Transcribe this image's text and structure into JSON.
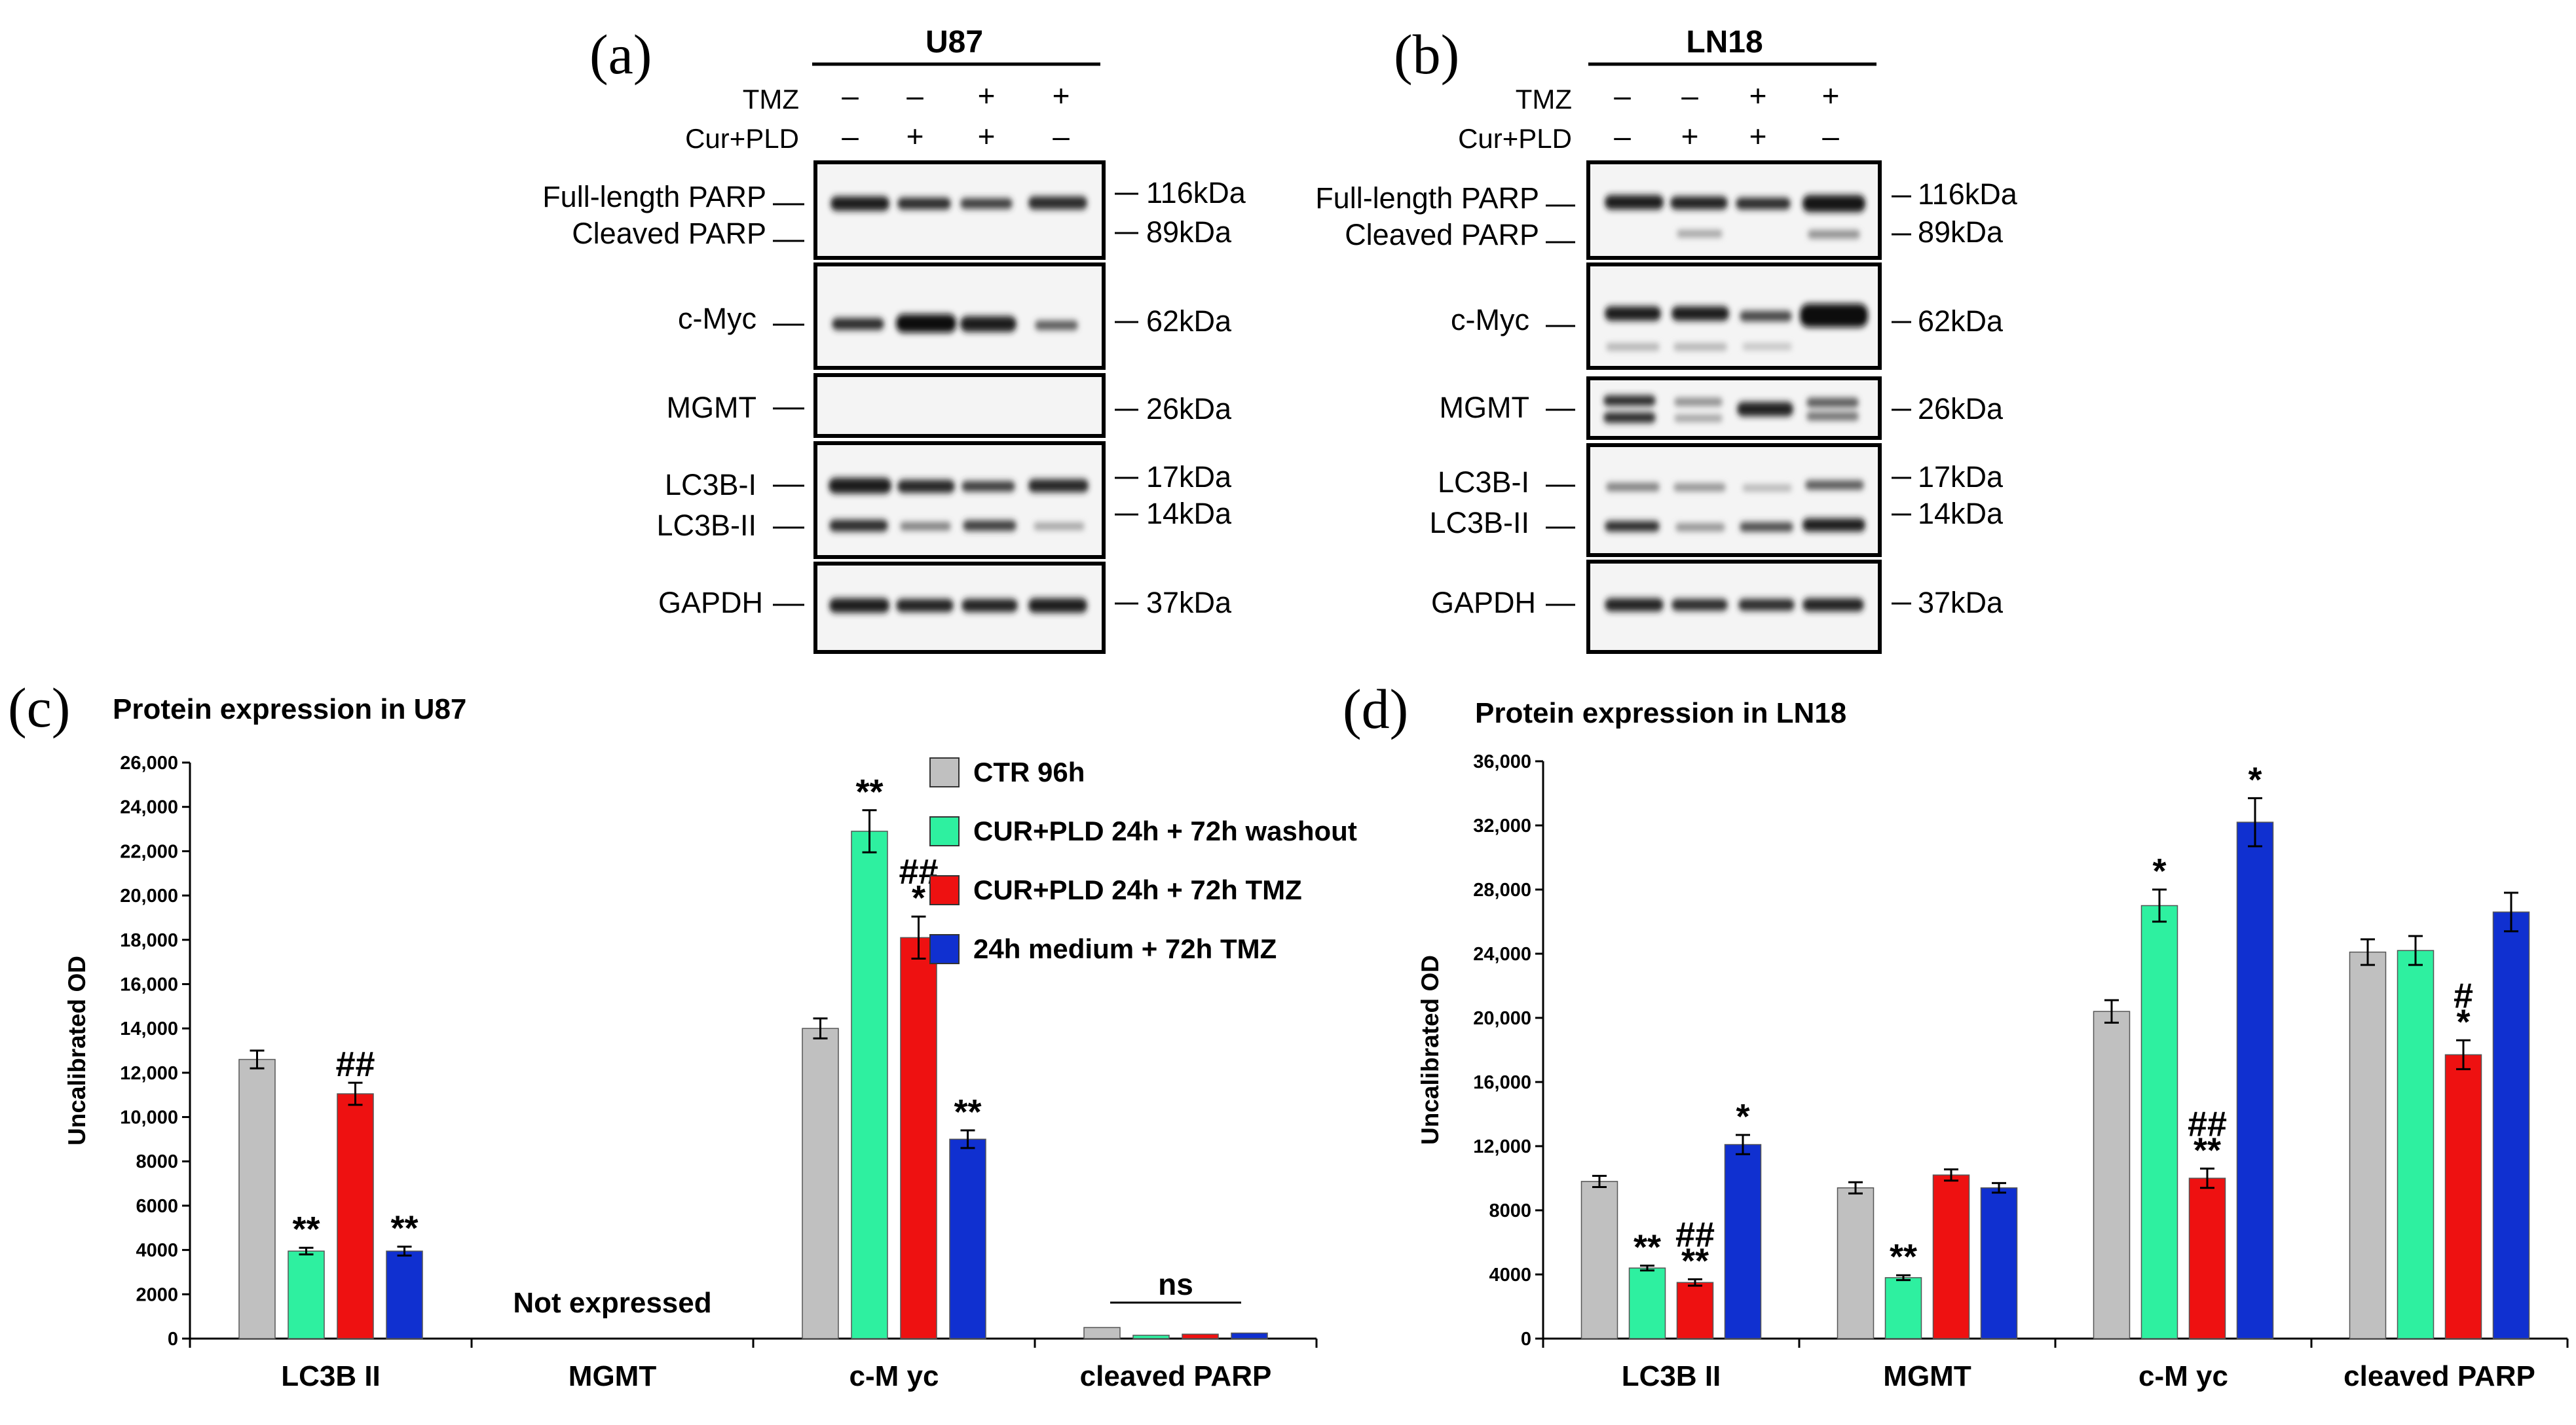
{
  "figure": {
    "panels": {
      "a": "(a)",
      "b": "(b)",
      "c": "(c)",
      "d": "(d)"
    }
  },
  "blots": [
    {
      "id": "a",
      "letter": "(a)",
      "cell_line": "U87",
      "tmz_label": "TMZ",
      "curpld_label": "Cur+PLD",
      "tmz_signs": [
        "–",
        "–",
        "+",
        "+"
      ],
      "curpld_signs": [
        "–",
        "+",
        "+",
        "–"
      ],
      "rows": [
        {
          "proteins": [
            "Full-length PARP",
            "Cleaved PARP"
          ],
          "kda": [
            "116kDa",
            "89kDa"
          ]
        },
        {
          "proteins": [
            "c-Myc"
          ],
          "kda": [
            "62kDa"
          ]
        },
        {
          "proteins": [
            "MGMT"
          ],
          "kda": [
            "26kDa"
          ]
        },
        {
          "proteins": [
            "LC3B-I",
            "LC3B-II"
          ],
          "kda": [
            "17kDa",
            "14kDa"
          ]
        },
        {
          "proteins": [
            "GAPDH"
          ],
          "kda": [
            "37kDa"
          ]
        }
      ]
    },
    {
      "id": "b",
      "letter": "(b)",
      "cell_line": "LN18",
      "tmz_label": "TMZ",
      "curpld_label": "Cur+PLD",
      "tmz_signs": [
        "–",
        "–",
        "+",
        "+"
      ],
      "curpld_signs": [
        "–",
        "+",
        "+",
        "–"
      ],
      "rows": [
        {
          "proteins": [
            "Full-length PARP",
            "Cleaved PARP"
          ],
          "kda": [
            "116kDa",
            "89kDa"
          ]
        },
        {
          "proteins": [
            "c-Myc"
          ],
          "kda": [
            "62kDa"
          ]
        },
        {
          "proteins": [
            "MGMT"
          ],
          "kda": [
            "26kDa"
          ]
        },
        {
          "proteins": [
            "LC3B-I",
            "LC3B-II"
          ],
          "kda": [
            "17kDa",
            "14kDa"
          ]
        },
        {
          "proteins": [
            "GAPDH"
          ],
          "kda": [
            "37kDa"
          ]
        }
      ]
    }
  ],
  "legend": {
    "colors": [
      "#c0c0c0",
      "#2ef0a0",
      "#ee1111",
      "#1030d0"
    ],
    "items": [
      "CTR 96h",
      "CUR+PLD 24h + 72h washout",
      "CUR+PLD 24h + 72h TMZ",
      "24h medium + 72h TMZ"
    ]
  },
  "chart_data": [
    {
      "type": "bar",
      "panel": "(c)",
      "title": "Protein expression in U87",
      "ylabel": "Uncalibrated OD",
      "xlabel": "",
      "ylim": [
        0,
        26000
      ],
      "yticks": [
        0,
        2000,
        4000,
        6000,
        8000,
        10000,
        12000,
        14000,
        16000,
        18000,
        20000,
        22000,
        24000,
        26000
      ],
      "ytick_labels": [
        "0",
        "2000",
        "4000",
        "6000",
        "8000",
        "10,000",
        "12,000",
        "14,000",
        "16,000",
        "18,000",
        "20,000",
        "22,000",
        "24,000",
        "26,000"
      ],
      "categories": [
        "LC3B II",
        "MGMT",
        "c-M yc",
        "cleaved PARP"
      ],
      "series": [
        {
          "name": "CTR 96h",
          "color": "#c0c0c0",
          "values": [
            12600,
            null,
            14000,
            500
          ],
          "errors": [
            400,
            null,
            450,
            0
          ]
        },
        {
          "name": "CUR+PLD 24h + 72h washout",
          "color": "#2ef0a0",
          "values": [
            3950,
            null,
            22900,
            150
          ],
          "errors": [
            150,
            null,
            950,
            0
          ]
        },
        {
          "name": "CUR+PLD 24h + 72h TMZ",
          "color": "#ee1111",
          "values": [
            11050,
            null,
            18100,
            200
          ],
          "errors": [
            500,
            null,
            950,
            0
          ]
        },
        {
          "name": "24h medium + 72h TMZ",
          "color": "#1030d0",
          "values": [
            3950,
            null,
            9000,
            250
          ],
          "errors": [
            200,
            null,
            400,
            0
          ]
        }
      ],
      "annotations": [
        {
          "category": 0,
          "series": 1,
          "lines": [
            "**"
          ]
        },
        {
          "category": 0,
          "series": 2,
          "lines": [
            "##"
          ]
        },
        {
          "category": 0,
          "series": 3,
          "lines": [
            "**"
          ]
        },
        {
          "category": 2,
          "series": 1,
          "lines": [
            "**"
          ]
        },
        {
          "category": 2,
          "series": 2,
          "lines": [
            "##",
            "*"
          ]
        },
        {
          "category": 2,
          "series": 3,
          "lines": [
            "**"
          ]
        }
      ],
      "not_expressed": {
        "category": 1,
        "text": "Not expressed"
      },
      "bracket": {
        "category": 3,
        "text": "ns"
      }
    },
    {
      "type": "bar",
      "panel": "(d)",
      "title": "Protein expression in LN18",
      "ylabel": "Uncalibrated OD",
      "xlabel": "",
      "ylim": [
        0,
        36000
      ],
      "yticks": [
        0,
        4000,
        8000,
        12000,
        16000,
        20000,
        24000,
        28000,
        32000,
        36000
      ],
      "ytick_labels": [
        "0",
        "4000",
        "8000",
        "12,000",
        "16,000",
        "20,000",
        "24,000",
        "28,000",
        "32,000",
        "36,000"
      ],
      "categories": [
        "LC3B II",
        "MGMT",
        "c-M yc",
        "cleaved PARP"
      ],
      "series": [
        {
          "name": "CTR 96h",
          "color": "#c0c0c0",
          "values": [
            9800,
            9400,
            20400,
            24100
          ],
          "errors": [
            350,
            350,
            700,
            800
          ]
        },
        {
          "name": "CUR+PLD 24h + 72h washout",
          "color": "#2ef0a0",
          "values": [
            4400,
            3800,
            27000,
            24200
          ],
          "errors": [
            150,
            150,
            1000,
            900
          ]
        },
        {
          "name": "CUR+PLD 24h + 72h TMZ",
          "color": "#ee1111",
          "values": [
            3500,
            10200,
            10000,
            17700
          ],
          "errors": [
            200,
            350,
            600,
            900
          ]
        },
        {
          "name": "24h medium + 72h TMZ",
          "color": "#1030d0",
          "values": [
            12100,
            9400,
            32200,
            26600
          ],
          "errors": [
            600,
            300,
            1500,
            1200
          ]
        }
      ],
      "annotations": [
        {
          "category": 0,
          "series": 1,
          "lines": [
            "**"
          ]
        },
        {
          "category": 0,
          "series": 2,
          "lines": [
            "##",
            "**"
          ]
        },
        {
          "category": 0,
          "series": 3,
          "lines": [
            "*"
          ]
        },
        {
          "category": 1,
          "series": 1,
          "lines": [
            "**"
          ]
        },
        {
          "category": 2,
          "series": 1,
          "lines": [
            "*"
          ]
        },
        {
          "category": 2,
          "series": 2,
          "lines": [
            "##",
            "**"
          ]
        },
        {
          "category": 2,
          "series": 3,
          "lines": [
            "*"
          ]
        },
        {
          "category": 3,
          "series": 2,
          "lines": [
            "#",
            "*"
          ]
        }
      ]
    }
  ]
}
